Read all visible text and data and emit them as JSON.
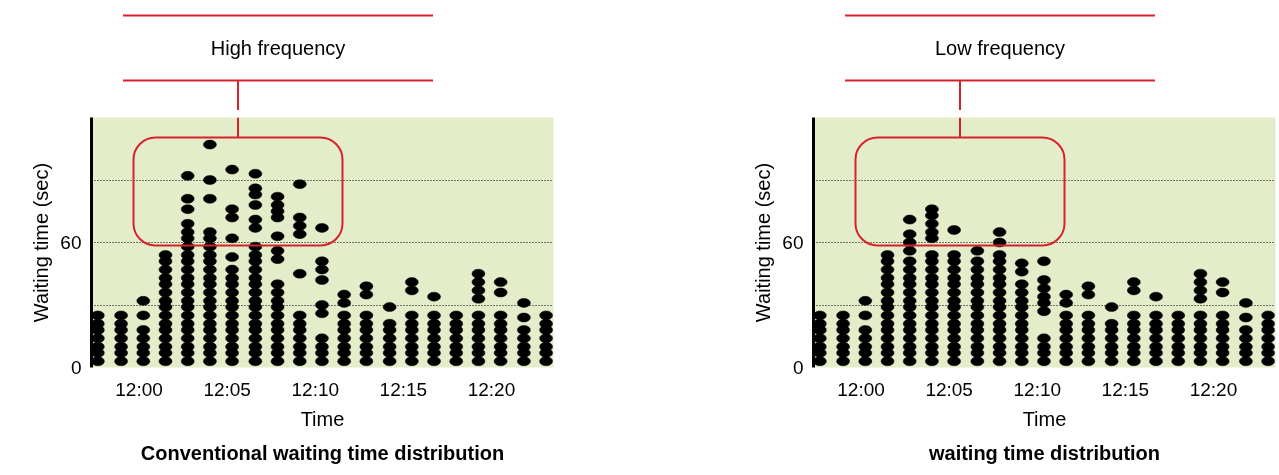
{
  "chart_data": [
    {
      "type": "scatter",
      "title": "Conventional waiting time distribution",
      "xlabel": "Time",
      "ylabel": "Waiting time (sec)",
      "annotations": [
        "High frequency"
      ],
      "xlim": [
        11.955,
        12.392
      ],
      "xticks": [
        {
          "value": 12.0,
          "label": "12:00"
        },
        {
          "value": 12.08333,
          "label": "12:05"
        },
        {
          "value": 12.16667,
          "label": "12:10"
        },
        {
          "value": 12.25,
          "label": "12:15"
        },
        {
          "value": 12.33333,
          "label": "12:20"
        }
      ],
      "ylim": [
        0,
        120
      ],
      "yticks": [
        0,
        {
          "value": 30,
          "label": null
        },
        60,
        {
          "value": 90,
          "label": null
        },
        {
          "value": 120,
          "label": null
        }
      ],
      "grid": "y",
      "marker": "circle",
      "series": [
        {
          "color": "#000000",
          "x": [
            11.961,
            11.961,
            11.961,
            11.961,
            11.961,
            11.961,
            11.961
          ],
          "values": [
            3,
            7,
            10,
            14,
            18,
            21,
            25
          ]
        },
        {
          "color": "#000000",
          "x": [
            11.983,
            11.983,
            11.983,
            11.983,
            11.983,
            11.983,
            11.983
          ],
          "values": [
            3,
            7,
            10,
            14,
            18,
            21,
            25
          ]
        },
        {
          "color": "#000000",
          "x": [
            12.004,
            12.004,
            12.004,
            12.004,
            12.004,
            12.004,
            12.004
          ],
          "values": [
            3,
            7,
            10,
            14,
            18,
            25,
            32
          ]
        },
        {
          "color": "#000000",
          "x": [
            12.025,
            12.025,
            12.025,
            12.025,
            12.025,
            12.025,
            12.025,
            12.025,
            12.025,
            12.025,
            12.025,
            12.025,
            12.025,
            12.025,
            12.025
          ],
          "values": [
            3,
            7,
            10,
            14,
            18,
            21,
            25,
            29,
            32,
            36,
            40,
            43,
            47,
            51,
            54
          ]
        },
        {
          "color": "#000000",
          "x": [
            12.046,
            12.046,
            12.046,
            12.046,
            12.046,
            12.046,
            12.046,
            12.046,
            12.046,
            12.046,
            12.046,
            12.046,
            12.046,
            12.046,
            12.046,
            12.046,
            12.046,
            12.046,
            12.046,
            12.046,
            12.046
          ],
          "values": [
            3,
            7,
            10,
            14,
            18,
            21,
            25,
            29,
            32,
            36,
            40,
            43,
            47,
            51,
            54,
            58,
            62,
            65,
            69,
            76,
            81
          ]
        },
        {
          "color": "#000000",
          "x": [
            12.046
          ],
          "values": [
            92
          ]
        },
        {
          "color": "#000000",
          "x": [
            12.067,
            12.067,
            12.067,
            12.067,
            12.067,
            12.067,
            12.067,
            12.067,
            12.067,
            12.067,
            12.067,
            12.067,
            12.067,
            12.067,
            12.067,
            12.067,
            12.067,
            12.067,
            12.067,
            12.067
          ],
          "values": [
            3,
            7,
            10,
            14,
            18,
            21,
            25,
            29,
            32,
            36,
            40,
            43,
            47,
            51,
            54,
            58,
            62,
            81,
            90,
            107
          ]
        },
        {
          "color": "#000000",
          "x": [
            12.067
          ],
          "values": [
            65
          ]
        },
        {
          "color": "#000000",
          "x": [
            12.088,
            12.088,
            12.088,
            12.088,
            12.088,
            12.088,
            12.088,
            12.088,
            12.088,
            12.088,
            12.088,
            12.088,
            12.088,
            12.088,
            12.088,
            12.088,
            12.088,
            12.088
          ],
          "values": [
            3,
            7,
            10,
            14,
            18,
            21,
            25,
            29,
            32,
            36,
            40,
            43,
            47,
            53,
            62,
            72,
            76,
            95
          ]
        },
        {
          "color": "#000000",
          "x": [
            12.11,
            12.11,
            12.11,
            12.11,
            12.11,
            12.11,
            12.11,
            12.11,
            12.11,
            12.11,
            12.11,
            12.11,
            12.11,
            12.11,
            12.11,
            12.11,
            12.11,
            12.11,
            12.11,
            12.11,
            12.11,
            12.11
          ],
          "values": [
            3,
            7,
            10,
            14,
            18,
            21,
            25,
            29,
            32,
            36,
            40,
            43,
            47,
            51,
            54,
            58,
            67,
            71,
            78,
            83,
            86,
            93
          ]
        },
        {
          "color": "#000000",
          "x": [
            12.131,
            12.131,
            12.131,
            12.131,
            12.131,
            12.131,
            12.131,
            12.131,
            12.131,
            12.131,
            12.131,
            12.131,
            12.131,
            12.131,
            12.131,
            12.131,
            12.131,
            12.131
          ],
          "values": [
            3,
            7,
            10,
            14,
            18,
            21,
            25,
            29,
            32,
            36,
            40,
            52,
            56,
            63,
            72,
            75,
            78,
            82
          ]
        },
        {
          "color": "#000000",
          "x": [
            12.152,
            12.152,
            12.152,
            12.152,
            12.152,
            12.152,
            12.152,
            12.152,
            12.152,
            12.152,
            12.152,
            12.152
          ],
          "values": [
            3,
            7,
            10,
            14,
            18,
            21,
            25,
            45,
            64,
            68,
            72,
            88
          ]
        },
        {
          "color": "#000000",
          "x": [
            12.173,
            12.173,
            12.173,
            12.173,
            12.173,
            12.173,
            12.173,
            12.173,
            12.173,
            12.173
          ],
          "values": [
            3,
            7,
            10,
            14,
            26,
            30,
            42,
            47,
            51,
            67
          ]
        },
        {
          "color": "#000000",
          "x": [
            12.194,
            12.194,
            12.194,
            12.194,
            12.194,
            12.194,
            12.194,
            12.194,
            12.194
          ],
          "values": [
            3,
            7,
            10,
            14,
            18,
            21,
            25,
            31,
            35
          ]
        },
        {
          "color": "#000000",
          "x": [
            12.215,
            12.215,
            12.215,
            12.215,
            12.215,
            12.215,
            12.215,
            12.215,
            12.215
          ],
          "values": [
            3,
            7,
            10,
            14,
            18,
            21,
            25,
            35,
            39
          ]
        },
        {
          "color": "#000000",
          "x": [
            12.237,
            12.237,
            12.237,
            12.237,
            12.237,
            12.237,
            12.237
          ],
          "values": [
            3,
            7,
            10,
            14,
            18,
            21,
            29
          ]
        },
        {
          "color": "#000000",
          "x": [
            12.258,
            12.258,
            12.258,
            12.258,
            12.258,
            12.258,
            12.258,
            12.258,
            12.258
          ],
          "values": [
            3,
            7,
            10,
            14,
            18,
            21,
            25,
            37,
            41
          ]
        },
        {
          "color": "#000000",
          "x": [
            12.279,
            12.279,
            12.279,
            12.279,
            12.279,
            12.279,
            12.279,
            12.279
          ],
          "values": [
            3,
            7,
            10,
            14,
            18,
            21,
            25,
            34
          ]
        },
        {
          "color": "#000000",
          "x": [
            12.3,
            12.3,
            12.3,
            12.3,
            12.3,
            12.3,
            12.3
          ],
          "values": [
            3,
            7,
            10,
            14,
            18,
            21,
            25
          ]
        },
        {
          "color": "#000000",
          "x": [
            12.321,
            12.321,
            12.321,
            12.321,
            12.321,
            12.321,
            12.321,
            12.321,
            12.321,
            12.321,
            12.321
          ],
          "values": [
            3,
            7,
            10,
            14,
            18,
            21,
            25,
            33,
            37,
            41,
            45
          ]
        },
        {
          "color": "#000000",
          "x": [
            12.342,
            12.342,
            12.342,
            12.342,
            12.342,
            12.342,
            12.342,
            12.342,
            12.342
          ],
          "values": [
            3,
            7,
            10,
            14,
            18,
            21,
            25,
            36,
            41
          ]
        },
        {
          "color": "#000000",
          "x": [
            12.364,
            12.364,
            12.364,
            12.364,
            12.364,
            12.364,
            12.364
          ],
          "values": [
            3,
            7,
            10,
            14,
            18,
            24,
            31
          ]
        },
        {
          "color": "#000000",
          "x": [
            12.385,
            12.385,
            12.385,
            12.385,
            12.385,
            12.385,
            12.385
          ],
          "values": [
            3,
            7,
            10,
            14,
            18,
            21,
            25
          ]
        }
      ]
    },
    {
      "type": "scatter",
      "title": "waiting time distribution",
      "xlabel": "Time",
      "ylabel": "Waiting time (sec)",
      "annotations": [
        "Low frequency"
      ],
      "xlim": [
        11.955,
        12.392
      ],
      "xticks": [
        {
          "value": 12.0,
          "label": "12:00"
        },
        {
          "value": 12.08333,
          "label": "12:05"
        },
        {
          "value": 12.16667,
          "label": "12:10"
        },
        {
          "value": 12.25,
          "label": "12:15"
        },
        {
          "value": 12.33333,
          "label": "12:20"
        }
      ],
      "ylim": [
        0,
        120
      ],
      "yticks": [
        0,
        {
          "value": 30,
          "label": null
        },
        60,
        {
          "value": 90,
          "label": null
        },
        {
          "value": 120,
          "label": null
        }
      ],
      "grid": "y",
      "marker": "circle",
      "series": [
        {
          "color": "#000000",
          "x": [
            11.961,
            11.961,
            11.961,
            11.961,
            11.961,
            11.961,
            11.961
          ],
          "values": [
            3,
            7,
            10,
            14,
            18,
            21,
            25
          ]
        },
        {
          "color": "#000000",
          "x": [
            11.983,
            11.983,
            11.983,
            11.983,
            11.983,
            11.983,
            11.983
          ],
          "values": [
            3,
            7,
            10,
            14,
            18,
            21,
            25
          ]
        },
        {
          "color": "#000000",
          "x": [
            12.004,
            12.004,
            12.004,
            12.004,
            12.004,
            12.004,
            12.004
          ],
          "values": [
            3,
            7,
            10,
            14,
            18,
            25,
            32
          ]
        },
        {
          "color": "#000000",
          "x": [
            12.025,
            12.025,
            12.025,
            12.025,
            12.025,
            12.025,
            12.025,
            12.025,
            12.025,
            12.025,
            12.025,
            12.025,
            12.025,
            12.025,
            12.025
          ],
          "values": [
            3,
            7,
            10,
            14,
            18,
            21,
            25,
            29,
            32,
            36,
            40,
            43,
            47,
            51,
            54
          ]
        },
        {
          "color": "#000000",
          "x": [
            12.046,
            12.046,
            12.046,
            12.046,
            12.046,
            12.046,
            12.046,
            12.046,
            12.046,
            12.046,
            12.046,
            12.046,
            12.046,
            12.046,
            12.046,
            12.046,
            12.046,
            12.046
          ],
          "values": [
            3,
            7,
            10,
            14,
            18,
            21,
            25,
            29,
            32,
            36,
            40,
            43,
            47,
            51,
            56,
            60,
            64,
            71
          ]
        },
        {
          "color": "#000000",
          "x": [
            12.067,
            12.067,
            12.067,
            12.067,
            12.067,
            12.067,
            12.067,
            12.067,
            12.067,
            12.067,
            12.067,
            12.067,
            12.067,
            12.067,
            12.067,
            12.067,
            12.067,
            12.067,
            12.067,
            12.067
          ],
          "values": [
            3,
            7,
            10,
            14,
            18,
            21,
            25,
            29,
            32,
            36,
            40,
            43,
            47,
            51,
            54,
            62,
            65,
            69,
            73,
            76
          ]
        },
        {
          "color": "#000000",
          "x": [
            12.088,
            12.088,
            12.088,
            12.088,
            12.088,
            12.088,
            12.088,
            12.088,
            12.088,
            12.088,
            12.088,
            12.088,
            12.088,
            12.088,
            12.088,
            12.088
          ],
          "values": [
            3,
            7,
            10,
            14,
            18,
            21,
            25,
            29,
            32,
            36,
            40,
            43,
            47,
            51,
            54,
            66
          ]
        },
        {
          "color": "#000000",
          "x": [
            12.11,
            12.11,
            12.11,
            12.11,
            12.11,
            12.11,
            12.11,
            12.11,
            12.11,
            12.11,
            12.11,
            12.11,
            12.11,
            12.11,
            12.11
          ],
          "values": [
            3,
            7,
            10,
            14,
            18,
            21,
            25,
            29,
            32,
            36,
            40,
            43,
            47,
            51,
            56
          ]
        },
        {
          "color": "#000000",
          "x": [
            12.131,
            12.131,
            12.131,
            12.131,
            12.131,
            12.131,
            12.131,
            12.131,
            12.131,
            12.131,
            12.131,
            12.131,
            12.131,
            12.131,
            12.131,
            12.131,
            12.131
          ],
          "values": [
            3,
            7,
            10,
            14,
            18,
            21,
            25,
            29,
            32,
            36,
            40,
            43,
            47,
            51,
            54,
            60,
            65
          ]
        },
        {
          "color": "#000000",
          "x": [
            12.152,
            12.152,
            12.152,
            12.152,
            12.152,
            12.152,
            12.152,
            12.152,
            12.152,
            12.152,
            12.152,
            12.152,
            12.152
          ],
          "values": [
            3,
            7,
            10,
            14,
            18,
            21,
            25,
            29,
            32,
            36,
            40,
            46,
            50
          ]
        },
        {
          "color": "#000000",
          "x": [
            12.173,
            12.173,
            12.173,
            12.173,
            12.173,
            12.173,
            12.173,
            12.173,
            12.173,
            12.173
          ],
          "values": [
            3,
            7,
            10,
            14,
            27,
            31,
            34,
            38,
            42,
            51
          ]
        },
        {
          "color": "#000000",
          "x": [
            12.194,
            12.194,
            12.194,
            12.194,
            12.194,
            12.194,
            12.194,
            12.194,
            12.194
          ],
          "values": [
            3,
            7,
            10,
            14,
            18,
            21,
            25,
            31,
            35
          ]
        },
        {
          "color": "#000000",
          "x": [
            12.215,
            12.215,
            12.215,
            12.215,
            12.215,
            12.215,
            12.215,
            12.215,
            12.215
          ],
          "values": [
            3,
            7,
            10,
            14,
            18,
            21,
            25,
            35,
            39
          ]
        },
        {
          "color": "#000000",
          "x": [
            12.237,
            12.237,
            12.237,
            12.237,
            12.237,
            12.237,
            12.237
          ],
          "values": [
            3,
            7,
            10,
            14,
            18,
            21,
            29
          ]
        },
        {
          "color": "#000000",
          "x": [
            12.258,
            12.258,
            12.258,
            12.258,
            12.258,
            12.258,
            12.258,
            12.258,
            12.258
          ],
          "values": [
            3,
            7,
            10,
            14,
            18,
            21,
            25,
            37,
            41
          ]
        },
        {
          "color": "#000000",
          "x": [
            12.279,
            12.279,
            12.279,
            12.279,
            12.279,
            12.279,
            12.279,
            12.279
          ],
          "values": [
            3,
            7,
            10,
            14,
            18,
            21,
            25,
            34
          ]
        },
        {
          "color": "#000000",
          "x": [
            12.3,
            12.3,
            12.3,
            12.3,
            12.3,
            12.3,
            12.3
          ],
          "values": [
            3,
            7,
            10,
            14,
            18,
            21,
            25
          ]
        },
        {
          "color": "#000000",
          "x": [
            12.321,
            12.321,
            12.321,
            12.321,
            12.321,
            12.321,
            12.321,
            12.321,
            12.321,
            12.321,
            12.321
          ],
          "values": [
            3,
            7,
            10,
            14,
            18,
            21,
            25,
            33,
            37,
            41,
            45
          ]
        },
        {
          "color": "#000000",
          "x": [
            12.342,
            12.342,
            12.342,
            12.342,
            12.342,
            12.342,
            12.342,
            12.342,
            12.342
          ],
          "values": [
            3,
            7,
            10,
            14,
            18,
            21,
            25,
            36,
            41
          ]
        },
        {
          "color": "#000000",
          "x": [
            12.364,
            12.364,
            12.364,
            12.364,
            12.364,
            12.364,
            12.364
          ],
          "values": [
            3,
            7,
            10,
            14,
            18,
            24,
            31
          ]
        },
        {
          "color": "#000000",
          "x": [
            12.385,
            12.385,
            12.385,
            12.385,
            12.385,
            12.385,
            12.385
          ],
          "values": [
            3,
            7,
            10,
            14,
            18,
            21,
            25
          ]
        }
      ]
    }
  ]
}
